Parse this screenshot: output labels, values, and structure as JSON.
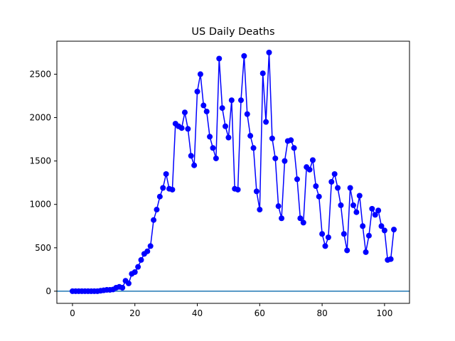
{
  "chart_data": {
    "type": "line",
    "title": "US Daily Deaths",
    "xlabel": "",
    "ylabel": "",
    "xlim": [
      -5,
      108
    ],
    "ylim": [
      -140,
      2880
    ],
    "x_ticks": [
      0,
      20,
      40,
      60,
      80,
      100
    ],
    "y_ticks": [
      0,
      500,
      1000,
      1500,
      2000,
      2500
    ],
    "grid": false,
    "legend": "none",
    "reference_line": {
      "y": 0,
      "color": "#1f77b4"
    },
    "series": [
      {
        "color": "#0000ff",
        "marker": "circle",
        "x": [
          0,
          1,
          2,
          3,
          4,
          5,
          6,
          7,
          8,
          9,
          10,
          11,
          12,
          13,
          14,
          15,
          16,
          17,
          18,
          19,
          20,
          21,
          22,
          23,
          24,
          25,
          26,
          27,
          28,
          29,
          30,
          31,
          32,
          33,
          34,
          35,
          36,
          37,
          38,
          39,
          40,
          41,
          42,
          43,
          44,
          45,
          46,
          47,
          48,
          49,
          50,
          51,
          52,
          53,
          54,
          55,
          56,
          57,
          58,
          59,
          60,
          61,
          62,
          63,
          64,
          65,
          66,
          67,
          68,
          69,
          70,
          71,
          72,
          73,
          74,
          75,
          76,
          77,
          78,
          79,
          80,
          81,
          82,
          83,
          84,
          85,
          86,
          87,
          88,
          89,
          90,
          91,
          92,
          93,
          94,
          95,
          96,
          97,
          98,
          99,
          100,
          101,
          102,
          103
        ],
        "values": [
          0,
          0,
          0,
          0,
          0,
          0,
          0,
          0,
          0,
          5,
          10,
          15,
          15,
          20,
          40,
          50,
          40,
          120,
          90,
          200,
          220,
          280,
          360,
          430,
          460,
          520,
          820,
          940,
          1090,
          1190,
          1350,
          1180,
          1170,
          1930,
          1900,
          1880,
          2060,
          1870,
          1560,
          1450,
          2300,
          2500,
          2140,
          2070,
          1780,
          1650,
          1530,
          2680,
          2110,
          1900,
          1770,
          2200,
          1180,
          1170,
          2200,
          2710,
          2040,
          1790,
          1650,
          1150,
          940,
          2510,
          1950,
          2750,
          1760,
          1530,
          980,
          840,
          1500,
          1730,
          1740,
          1650,
          1290,
          840,
          790,
          1430,
          1400,
          1510,
          1210,
          1090,
          660,
          520,
          620,
          1260,
          1350,
          1190,
          990,
          660,
          470,
          1190,
          990,
          910,
          1100,
          750,
          450,
          640,
          950,
          880,
          930,
          750,
          700,
          360,
          370,
          710
        ]
      }
    ]
  }
}
